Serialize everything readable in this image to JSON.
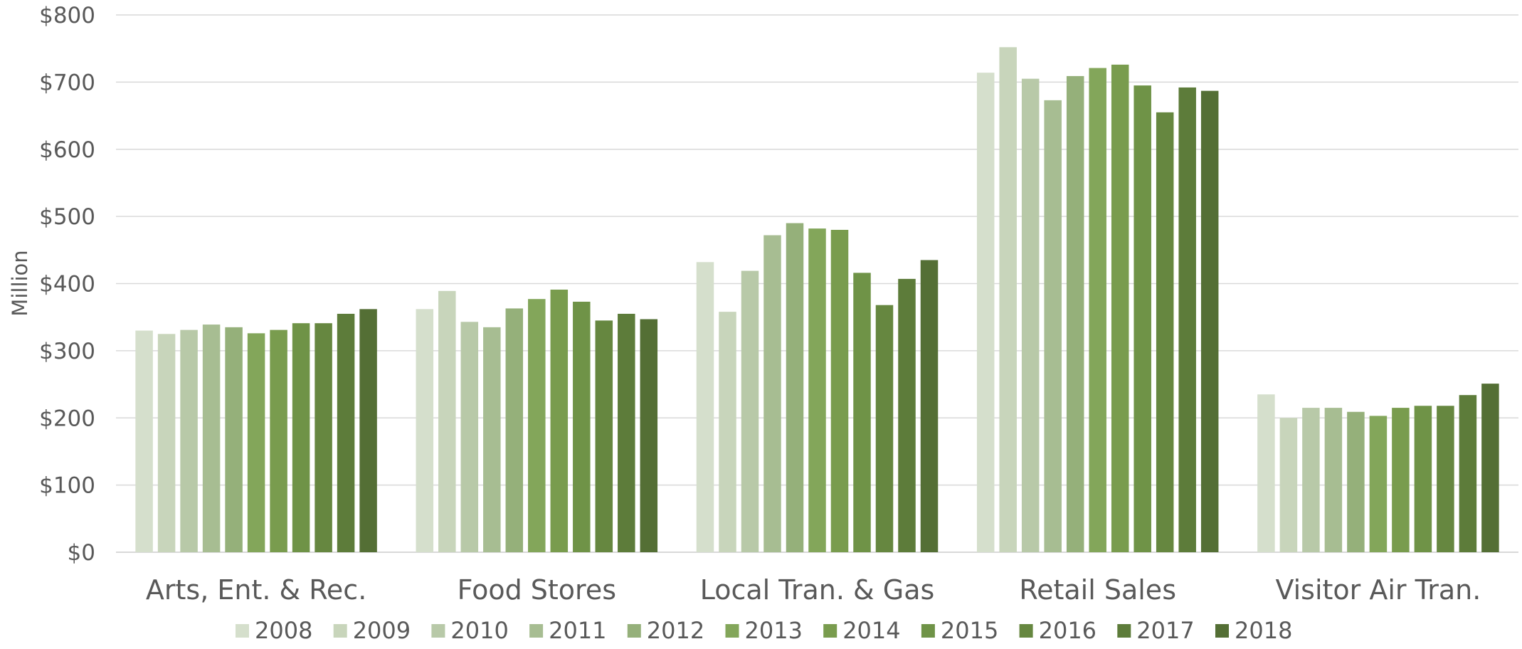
{
  "chart_data": {
    "type": "bar",
    "ylabel": "Million",
    "ylim": [
      0,
      800
    ],
    "yticks": [
      0,
      100,
      200,
      300,
      400,
      500,
      600,
      700,
      800
    ],
    "ytick_labels": [
      "$0",
      "$100",
      "$200",
      "$300",
      "$400",
      "$500",
      "$600",
      "$700",
      "$800"
    ],
    "grid": true,
    "legend_position": "bottom",
    "categories": [
      "Arts, Ent. & Rec.",
      "Food Stores",
      "Local Tran. & Gas",
      "Retail Sales",
      "Visitor Air Tran."
    ],
    "series": [
      {
        "name": "2008",
        "color": "#d5dfcc",
        "values": [
          330,
          362,
          432,
          714,
          235
        ]
      },
      {
        "name": "2009",
        "color": "#c8d5bb",
        "values": [
          325,
          389,
          358,
          752,
          200
        ]
      },
      {
        "name": "2010",
        "color": "#b8c9a8",
        "values": [
          331,
          343,
          419,
          705,
          215
        ]
      },
      {
        "name": "2011",
        "color": "#a7bd92",
        "values": [
          339,
          335,
          472,
          673,
          215
        ]
      },
      {
        "name": "2012",
        "color": "#95b07a",
        "values": [
          335,
          363,
          490,
          709,
          209
        ]
      },
      {
        "name": "2013",
        "color": "#83a65a",
        "values": [
          326,
          377,
          482,
          721,
          203
        ]
      },
      {
        "name": "2014",
        "color": "#799c4e",
        "values": [
          331,
          391,
          480,
          726,
          215
        ]
      },
      {
        "name": "2015",
        "color": "#6f9347",
        "values": [
          341,
          373,
          416,
          695,
          218
        ]
      },
      {
        "name": "2016",
        "color": "#668740",
        "values": [
          341,
          345,
          368,
          655,
          218
        ]
      },
      {
        "name": "2017",
        "color": "#5d7c3a",
        "values": [
          355,
          355,
          407,
          692,
          234
        ]
      },
      {
        "name": "2018",
        "color": "#546f35",
        "values": [
          362,
          347,
          435,
          687,
          251
        ]
      }
    ]
  }
}
